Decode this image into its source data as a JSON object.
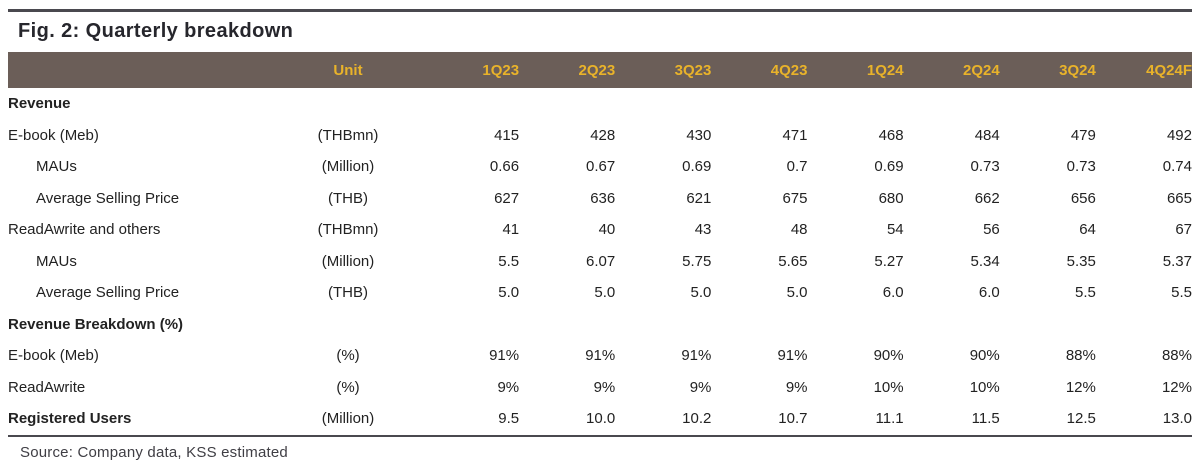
{
  "title": "Fig. 2: Quarterly breakdown",
  "source_note": "Source: Company data, KSS estimated",
  "colors": {
    "header_bg": "#6b5e58",
    "header_text": "#e9b32a",
    "rule_dark": "#4a494f",
    "body_text": "#222222"
  },
  "chart_data": {
    "type": "table",
    "unit_header": "Unit",
    "columns": [
      "1Q23",
      "2Q23",
      "3Q23",
      "4Q23",
      "1Q24",
      "2Q24",
      "3Q24",
      "4Q24F"
    ],
    "rows": [
      {
        "label": "Revenue",
        "unit": "",
        "values": [
          "",
          "",
          "",
          "",
          "",
          "",
          "",
          ""
        ],
        "style": "section"
      },
      {
        "label": "E-book (Meb)",
        "unit": "(THBmn)",
        "values": [
          "415",
          "428",
          "430",
          "471",
          "468",
          "484",
          "479",
          "492"
        ],
        "style": "normal"
      },
      {
        "label": "MAUs",
        "unit": "(Million)",
        "values": [
          "0.66",
          "0.67",
          "0.69",
          "0.7",
          "0.69",
          "0.73",
          "0.73",
          "0.74"
        ],
        "style": "indent"
      },
      {
        "label": "Average Selling Price",
        "unit": "(THB)",
        "values": [
          "627",
          "636",
          "621",
          "675",
          "680",
          "662",
          "656",
          "665"
        ],
        "style": "indent"
      },
      {
        "label": "ReadAwrite and others",
        "unit": "(THBmn)",
        "values": [
          "41",
          "40",
          "43",
          "48",
          "54",
          "56",
          "64",
          "67"
        ],
        "style": "normal"
      },
      {
        "label": "MAUs",
        "unit": "(Million)",
        "values": [
          "5.5",
          "6.07",
          "5.75",
          "5.65",
          "5.27",
          "5.34",
          "5.35",
          "5.37"
        ],
        "style": "indent"
      },
      {
        "label": "Average Selling Price",
        "unit": "(THB)",
        "values": [
          "5.0",
          "5.0",
          "5.0",
          "5.0",
          "6.0",
          "6.0",
          "5.5",
          "5.5"
        ],
        "style": "indent"
      },
      {
        "label": "Revenue Breakdown (%)",
        "unit": "",
        "values": [
          "",
          "",
          "",
          "",
          "",
          "",
          "",
          ""
        ],
        "style": "section"
      },
      {
        "label": "E-book (Meb)",
        "unit": "(%)",
        "values": [
          "91%",
          "91%",
          "91%",
          "91%",
          "90%",
          "90%",
          "88%",
          "88%"
        ],
        "style": "normal"
      },
      {
        "label": "ReadAwrite",
        "unit": "(%)",
        "values": [
          "9%",
          "9%",
          "9%",
          "9%",
          "10%",
          "10%",
          "12%",
          "12%"
        ],
        "style": "normal"
      },
      {
        "label": "Registered Users",
        "unit": "(Million)",
        "values": [
          "9.5",
          "10.0",
          "10.2",
          "10.7",
          "11.1",
          "11.5",
          "12.5",
          "13.0"
        ],
        "style": "bold-label"
      }
    ]
  }
}
